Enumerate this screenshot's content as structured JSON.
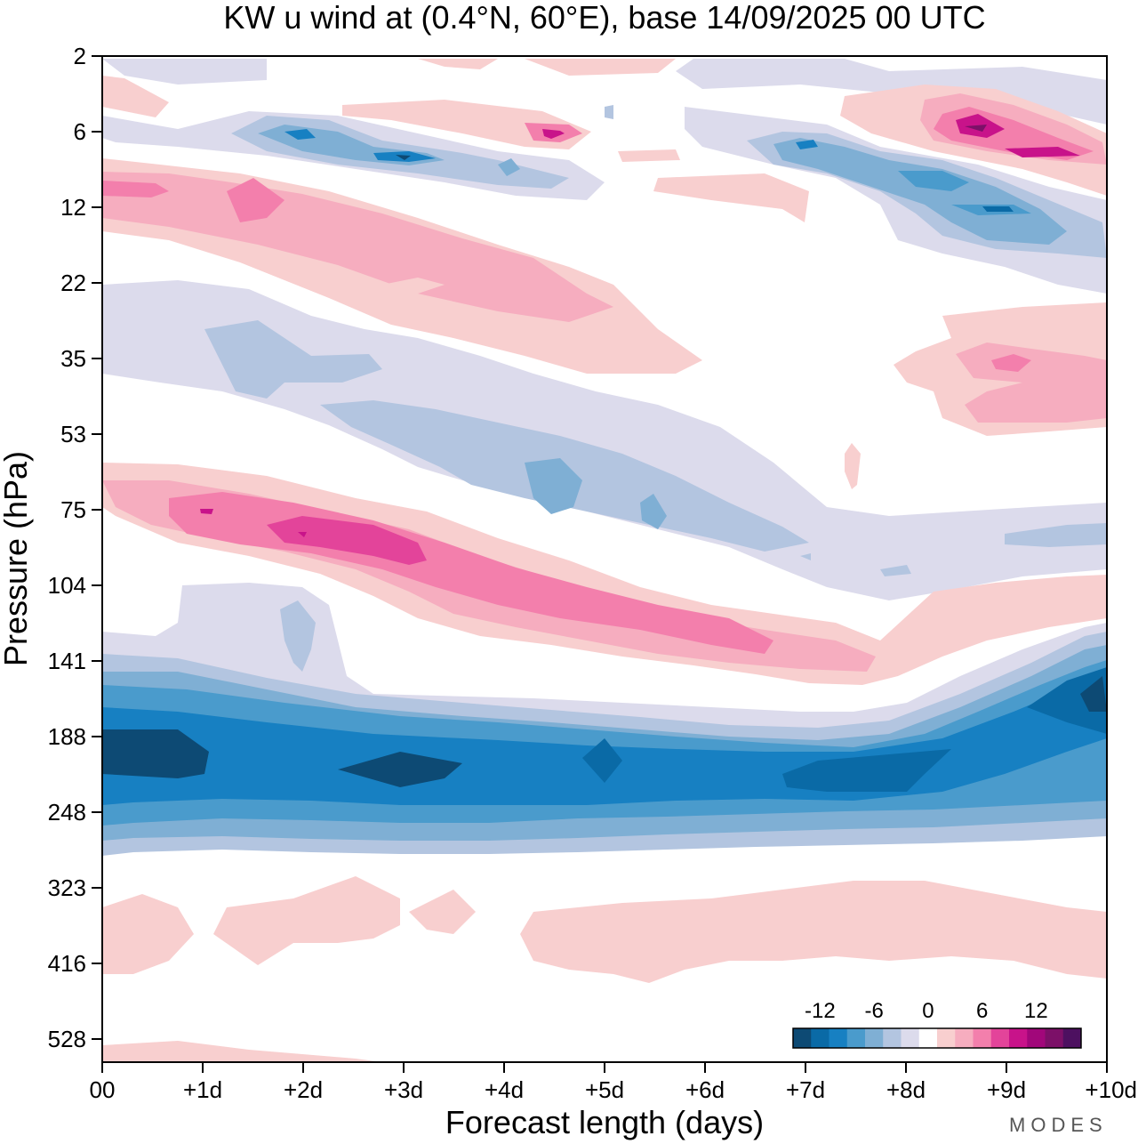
{
  "chart_data": {
    "type": "heatmap",
    "title": "KW u wind at (0.4°N, 60°E),  base 14/09/2025  00 UTC",
    "xlabel": "Forecast length (days)",
    "ylabel": "Pressure (hPa)",
    "x_ticks": [
      "00",
      "+1d",
      "+2d",
      "+3d",
      "+4d",
      "+5d",
      "+6d",
      "+7d",
      "+8d",
      "+9d",
      "+10d"
    ],
    "y_ticks": [
      "2",
      "6",
      "12",
      "22",
      "35",
      "53",
      "75",
      "104",
      "141",
      "188",
      "248",
      "323",
      "416",
      "528"
    ],
    "xlim_days": [
      0,
      10
    ],
    "ylim_levels": [
      0,
      13
    ],
    "colorbar": {
      "tick_labels": [
        "-12",
        "-6",
        "0",
        "6",
        "12"
      ],
      "tick_values": [
        -12,
        -6,
        0,
        6,
        12
      ],
      "levels": [
        -16,
        -14,
        -12,
        -10,
        -8,
        -6,
        -4,
        -2,
        2,
        4,
        6,
        8,
        10,
        12,
        14,
        16
      ],
      "colors": [
        "#0d4a74",
        "#0a6aa6",
        "#1780c2",
        "#4a9bcc",
        "#7fafd4",
        "#b3c5e0",
        "#dcdbec",
        "#ffffff",
        "#f8cfcf",
        "#f6adbf",
        "#f37fac",
        "#e3449a",
        "#c8138a",
        "#a1077a",
        "#7c1068",
        "#4d1060"
      ]
    },
    "features": [
      {
        "name": "tropopause-easterly-jet",
        "pressure_hPa": "188-248",
        "min_u": -16,
        "days": [
          0,
          10
        ]
      },
      {
        "name": "lower-strat-westerly-band",
        "pressure_hPa": "75-141",
        "max_u": 12,
        "days": [
          0.5,
          7.5
        ]
      },
      {
        "name": "strat-easterly-band",
        "pressure_hPa": "35-104",
        "min_u": -10,
        "days": [
          1,
          9
        ]
      },
      {
        "name": "upper-strat-westerly",
        "pressure_hPa": "12-22",
        "max_u": 10,
        "days": [
          0,
          5
        ]
      },
      {
        "name": "upper-strat-easterly",
        "pressure_hPa": "6-12",
        "min_u": -12,
        "days": [
          1,
          10
        ]
      },
      {
        "name": "upper-strat-westerly-late",
        "pressure_hPa": "2-8",
        "max_u": 16,
        "days": [
          8,
          10
        ]
      },
      {
        "name": "mid-trop-westerly",
        "pressure_hPa": "323-416",
        "max_u": 4,
        "days": [
          0,
          10
        ]
      }
    ]
  },
  "brand": "MODES"
}
